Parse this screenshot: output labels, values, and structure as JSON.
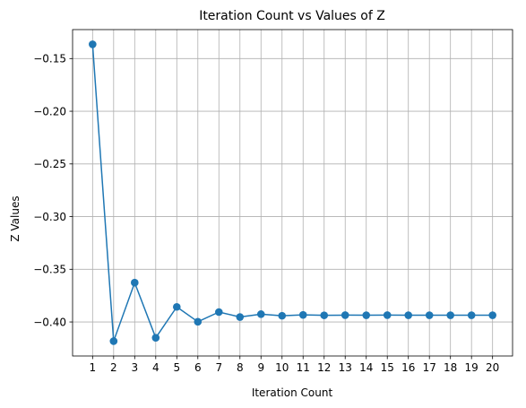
{
  "chart_data": {
    "type": "line",
    "title": "Iteration Count vs Values of Z",
    "xlabel": "Iteration Count",
    "ylabel": "Z Values",
    "x": [
      1,
      2,
      3,
      4,
      5,
      6,
      7,
      8,
      9,
      10,
      11,
      12,
      13,
      14,
      15,
      16,
      17,
      18,
      19,
      20
    ],
    "series": [
      {
        "values": [
          -0.1365,
          -0.4182,
          -0.3627,
          -0.415,
          -0.3857,
          -0.3998,
          -0.3906,
          -0.3953,
          -0.3926,
          -0.3941,
          -0.3933,
          -0.3937,
          -0.3935,
          -0.3936,
          -0.3935,
          -0.3936,
          -0.3936,
          -0.3936,
          -0.3936,
          -0.3936
        ],
        "color": "#1f77b4",
        "marker": "circle"
      }
    ],
    "xticks": [
      "1",
      "2",
      "3",
      "4",
      "5",
      "6",
      "7",
      "8",
      "9",
      "10",
      "11",
      "12",
      "13",
      "14",
      "15",
      "16",
      "17",
      "18",
      "19",
      "20"
    ],
    "yticks": [
      -0.15,
      -0.2,
      -0.25,
      -0.3,
      -0.35,
      -0.4
    ],
    "ytick_labels": [
      "−0.15",
      "−0.20",
      "−0.25",
      "−0.30",
      "−0.35",
      "−0.40"
    ],
    "xlim": [
      0.05,
      20.95
    ],
    "ylim": [
      -0.4323,
      -0.1225
    ],
    "grid": true,
    "legend": "none"
  }
}
